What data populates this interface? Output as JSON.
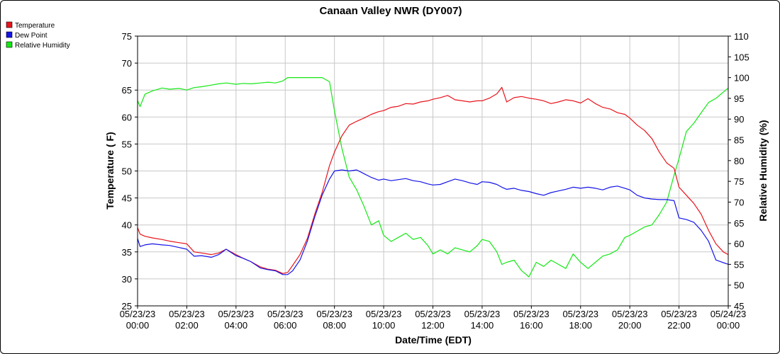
{
  "chart_data": {
    "type": "line",
    "title": "Canaan Valley NWR (DY007)",
    "xlabel": "Date/Time (EDT)",
    "ylabel_left": "Temperature ( F)",
    "ylabel_right": "Relative Humidity (%)",
    "ylim_left": [
      25,
      75
    ],
    "ylim_right": [
      45,
      110
    ],
    "yticks_left": [
      "25",
      "30",
      "35",
      "40",
      "45",
      "50",
      "55",
      "60",
      "65",
      "70",
      "75"
    ],
    "yticks_right": [
      "45",
      "50",
      "55",
      "60",
      "65",
      "70",
      "75",
      "80",
      "85",
      "90",
      "95",
      "100",
      "105",
      "110"
    ],
    "xlim_hours": [
      0,
      24
    ],
    "xticks": [
      {
        "date": "05/23/23",
        "time": "00:00"
      },
      {
        "date": "05/23/23",
        "time": "02:00"
      },
      {
        "date": "05/23/23",
        "time": "04:00"
      },
      {
        "date": "05/23/23",
        "time": "06:00"
      },
      {
        "date": "05/23/23",
        "time": "08:00"
      },
      {
        "date": "05/23/23",
        "time": "10:00"
      },
      {
        "date": "05/23/23",
        "time": "12:00"
      },
      {
        "date": "05/23/23",
        "time": "14:00"
      },
      {
        "date": "05/23/23",
        "time": "16:00"
      },
      {
        "date": "05/23/23",
        "time": "18:00"
      },
      {
        "date": "05/23/23",
        "time": "20:00"
      },
      {
        "date": "05/23/23",
        "time": "22:00"
      },
      {
        "date": "05/24/23",
        "time": "00:00"
      }
    ],
    "grid": true,
    "legend_position": "top-left",
    "series": [
      {
        "name": "Temperature",
        "axis": "left",
        "color": "#e8141c",
        "x": [
          0,
          0.1,
          0.3,
          0.6,
          1,
          1.3,
          1.7,
          2,
          2.3,
          2.6,
          3,
          3.3,
          3.6,
          4,
          4.3,
          4.6,
          5,
          5.3,
          5.6,
          5.9,
          6.1,
          6.3,
          6.6,
          6.9,
          7.2,
          7.5,
          7.8,
          8,
          8.3,
          8.6,
          8.9,
          9.2,
          9.5,
          9.8,
          10,
          10.3,
          10.6,
          10.9,
          11.2,
          11.5,
          11.8,
          12,
          12.3,
          12.6,
          12.9,
          13.2,
          13.5,
          13.8,
          14,
          14.3,
          14.6,
          14.8,
          15,
          15.3,
          15.6,
          15.9,
          16.2,
          16.5,
          16.8,
          17.1,
          17.4,
          17.7,
          18,
          18.3,
          18.6,
          18.9,
          19.2,
          19.5,
          19.8,
          20,
          20.3,
          20.6,
          20.9,
          21.2,
          21.5,
          21.8,
          22,
          22.3,
          22.6,
          22.9,
          23.2,
          23.5,
          23.8,
          24
        ],
        "values": [
          39.5,
          38.3,
          37.9,
          37.6,
          37.3,
          37,
          36.7,
          36.5,
          35,
          34.8,
          34.5,
          34.8,
          35.5,
          34.5,
          33.8,
          33.2,
          32.2,
          31.8,
          31.6,
          31,
          31.2,
          32.5,
          34.5,
          37.5,
          42,
          46,
          51,
          53.5,
          56.5,
          58.5,
          59.2,
          59.8,
          60.5,
          61,
          61.2,
          61.8,
          62,
          62.5,
          62.4,
          62.8,
          63,
          63.3,
          63.6,
          64,
          63.2,
          63,
          62.8,
          63,
          63,
          63.5,
          64.3,
          65.5,
          62.8,
          63.6,
          63.8,
          63.5,
          63.3,
          63,
          62.5,
          62.8,
          63.2,
          63,
          62.6,
          63.4,
          62.5,
          61.8,
          61.5,
          60.8,
          60.5,
          59.8,
          58.5,
          57.5,
          56,
          53.5,
          51.5,
          50.5,
          47,
          45.5,
          44,
          42,
          39,
          36.5,
          35,
          34.5
        ]
      },
      {
        "name": "Dew Point",
        "axis": "left",
        "color": "#1414e8",
        "x": [
          0,
          0.1,
          0.3,
          0.6,
          1,
          1.3,
          1.7,
          2,
          2.3,
          2.6,
          3,
          3.3,
          3.6,
          4,
          4.3,
          4.6,
          5,
          5.3,
          5.6,
          5.9,
          6.1,
          6.3,
          6.6,
          6.9,
          7.2,
          7.5,
          7.8,
          8,
          8.3,
          8.6,
          8.9,
          9.2,
          9.5,
          9.8,
          10,
          10.3,
          10.6,
          10.9,
          11.2,
          11.5,
          11.8,
          12,
          12.3,
          12.6,
          12.9,
          13.2,
          13.5,
          13.8,
          14,
          14.3,
          14.6,
          14.8,
          15,
          15.3,
          15.6,
          15.9,
          16.2,
          16.5,
          16.8,
          17.1,
          17.4,
          17.7,
          18,
          18.3,
          18.6,
          18.9,
          19.2,
          19.5,
          19.8,
          20,
          20.3,
          20.6,
          20.9,
          21.2,
          21.5,
          21.8,
          22,
          22.3,
          22.6,
          22.9,
          23.2,
          23.5,
          23.8,
          24
        ],
        "values": [
          37.5,
          36,
          36.3,
          36.5,
          36.3,
          36.2,
          35.8,
          35.5,
          34.2,
          34.3,
          34,
          34.5,
          35.5,
          34.3,
          33.8,
          33.2,
          32,
          31.7,
          31.5,
          30.8,
          30.8,
          31.5,
          33.5,
          37,
          41.5,
          45.5,
          48.5,
          50,
          50.2,
          50,
          50.2,
          49.5,
          48.8,
          48.3,
          48.5,
          48.2,
          48.4,
          48.6,
          48.2,
          48,
          47.6,
          47.4,
          47.5,
          48,
          48.5,
          48.2,
          47.8,
          47.5,
          48,
          47.9,
          47.5,
          47,
          46.6,
          46.8,
          46.4,
          46.2,
          45.8,
          45.5,
          46,
          46.3,
          46.6,
          47,
          46.8,
          47,
          46.8,
          46.5,
          47,
          47.2,
          46.8,
          46.5,
          45.5,
          45,
          44.8,
          44.7,
          44.7,
          44.5,
          41.3,
          41,
          40.5,
          39,
          37,
          33.5,
          33,
          32.7
        ]
      },
      {
        "name": "Relative Humidity",
        "axis": "right",
        "color": "#14e814",
        "x": [
          0,
          0.1,
          0.3,
          0.6,
          1,
          1.3,
          1.7,
          2,
          2.3,
          2.6,
          3,
          3.3,
          3.6,
          4,
          4.3,
          4.6,
          5,
          5.3,
          5.6,
          5.9,
          6.1,
          6.3,
          6.6,
          6.9,
          7.2,
          7.5,
          7.8,
          8,
          8.3,
          8.6,
          8.9,
          9.2,
          9.5,
          9.8,
          10,
          10.3,
          10.6,
          10.9,
          11.2,
          11.5,
          11.8,
          12,
          12.3,
          12.6,
          12.9,
          13.2,
          13.5,
          13.8,
          14,
          14.3,
          14.6,
          14.8,
          15,
          15.3,
          15.6,
          15.9,
          16.2,
          16.5,
          16.8,
          17.1,
          17.4,
          17.7,
          18,
          18.3,
          18.6,
          18.9,
          19.2,
          19.5,
          19.8,
          20,
          20.3,
          20.6,
          20.9,
          21.2,
          21.5,
          21.8,
          22,
          22.3,
          22.6,
          22.9,
          23.2,
          23.5,
          23.8,
          24
        ],
        "values": [
          94.5,
          93,
          96,
          96.8,
          97.5,
          97.2,
          97.4,
          97,
          97.6,
          97.8,
          98.2,
          98.5,
          98.7,
          98.4,
          98.6,
          98.5,
          98.7,
          98.9,
          98.7,
          99.2,
          100,
          100,
          100,
          100,
          100,
          100,
          99,
          92,
          83,
          76,
          73,
          69,
          64.5,
          65.5,
          62,
          60.5,
          61.5,
          62.5,
          61,
          61.5,
          59.5,
          57.5,
          58.5,
          57.5,
          59,
          58.5,
          58,
          59.5,
          61,
          60.5,
          58,
          55,
          55.5,
          56,
          53.5,
          52,
          55.5,
          54.5,
          56,
          55,
          54,
          57.5,
          55.5,
          54,
          55.5,
          57,
          57.5,
          58.5,
          61.5,
          62,
          63,
          64,
          64.5,
          67,
          70,
          76.5,
          80.5,
          87,
          89,
          91.5,
          94,
          95,
          96.5,
          97.5
        ]
      }
    ]
  }
}
